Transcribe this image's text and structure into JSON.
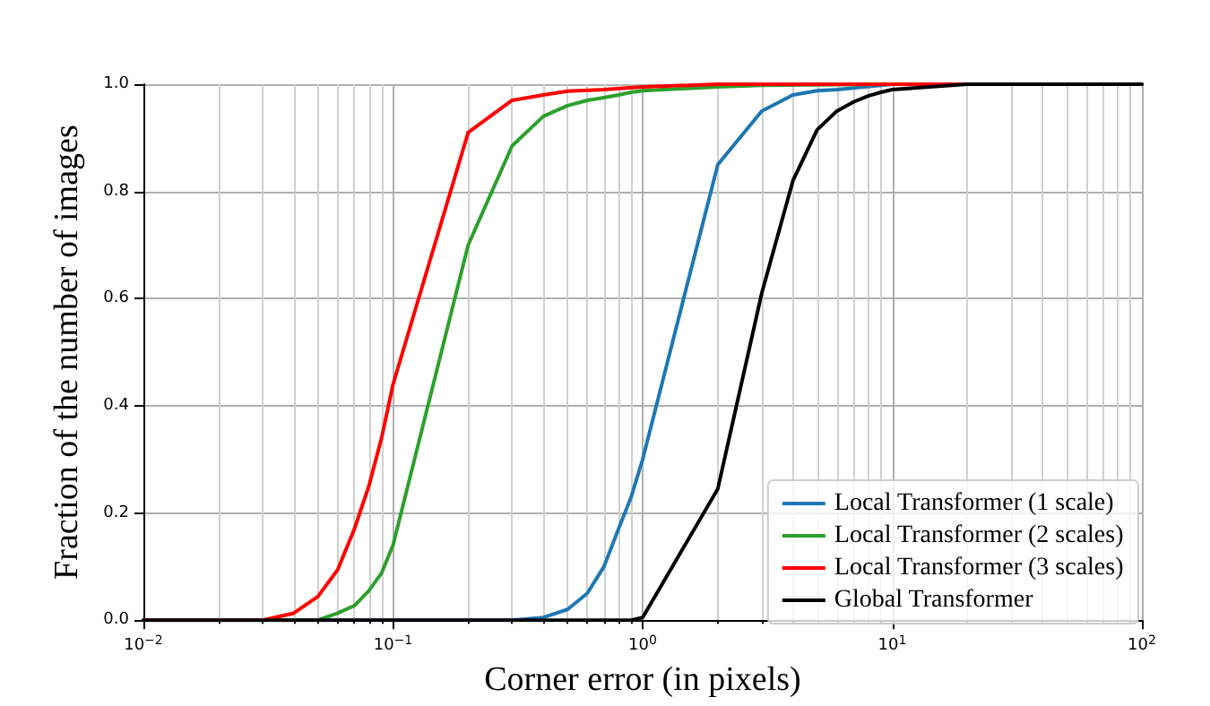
{
  "chart_data": {
    "type": "line",
    "xlabel": "Corner error (in pixels)",
    "ylabel": "Fraction of the number of images",
    "log": "x",
    "grid": true,
    "legend": "bottom right",
    "marker": "none",
    "line_style": "solid",
    "xlim": [
      0.01,
      100
    ],
    "ylim": [
      0,
      1
    ],
    "xticks": [
      {
        "value": 0.01,
        "label": "10$^{−2}$"
      },
      {
        "value": 0.1,
        "label": "10$^{−1}$"
      },
      {
        "value": 1,
        "label": "10$^{0}$"
      },
      {
        "value": 10,
        "label": "10$^{1}$"
      },
      {
        "value": 100,
        "label": "10$^{2}$"
      }
    ],
    "yticks": [
      {
        "value": 0,
        "label": "0.0"
      },
      0.2,
      0.4,
      0.6,
      0.8,
      {
        "value": 1,
        "label": "1.0"
      }
    ],
    "series": [
      {
        "name": "Local Transformer (1 scale)",
        "color": "#1f77b4",
        "x": [
          0.01,
          0.3,
          0.4,
          0.5,
          0.6,
          0.7,
          0.8,
          0.9,
          1,
          2,
          3,
          4,
          5,
          6,
          10,
          100
        ],
        "values": [
          0,
          0,
          0.005,
          0.02,
          0.05,
          0.1,
          0.17,
          0.23,
          0.3,
          0.85,
          0.95,
          0.98,
          0.988,
          0.99,
          1,
          1
        ]
      },
      {
        "name": "Local Transformer (2 scales)",
        "color": "#2ca02c",
        "x": [
          0.01,
          0.05,
          0.06,
          0.07,
          0.08,
          0.09,
          0.1,
          0.2,
          0.3,
          0.4,
          0.5,
          0.6,
          0.7,
          0.8,
          0.9,
          1,
          2,
          3,
          10,
          100
        ],
        "values": [
          0,
          0,
          0.013,
          0.027,
          0.055,
          0.088,
          0.14,
          0.7,
          0.885,
          0.94,
          0.96,
          0.97,
          0.975,
          0.98,
          0.985,
          0.988,
          0.995,
          0.998,
          1,
          1
        ]
      },
      {
        "name": "Local Transformer (3 scales)",
        "color": "#ff0000",
        "x": [
          0.01,
          0.03,
          0.04,
          0.05,
          0.06,
          0.07,
          0.08,
          0.09,
          0.1,
          0.2,
          0.3,
          0.4,
          0.5,
          0.7,
          1,
          2,
          100
        ],
        "values": [
          0,
          0,
          0.013,
          0.044,
          0.094,
          0.17,
          0.25,
          0.34,
          0.44,
          0.91,
          0.97,
          0.98,
          0.987,
          0.99,
          0.995,
          1,
          1
        ]
      },
      {
        "name": "Global Transformer",
        "color": "#000000",
        "x": [
          0.01,
          0.9,
          1,
          2,
          3,
          4,
          5,
          6,
          7,
          8,
          9,
          10,
          20,
          100
        ],
        "values": [
          0,
          0,
          0.005,
          0.245,
          0.61,
          0.82,
          0.915,
          0.95,
          0.967,
          0.978,
          0.985,
          0.99,
          1,
          1
        ]
      }
    ]
  }
}
